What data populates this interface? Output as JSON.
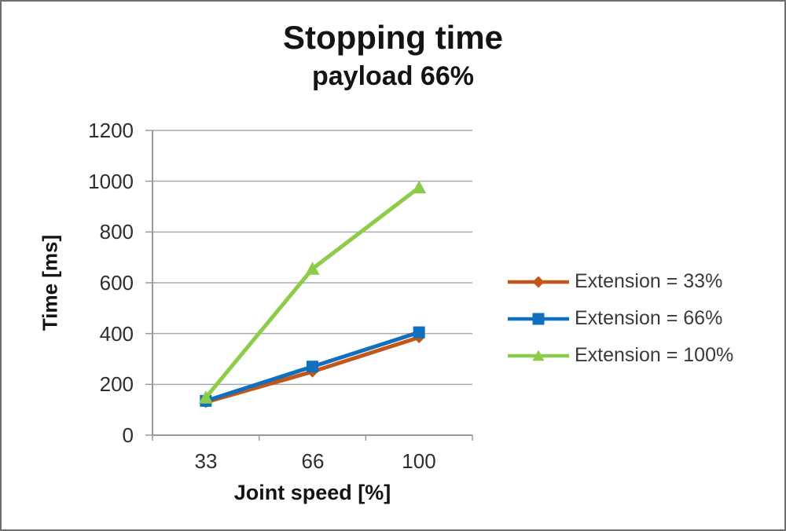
{
  "title": "Stopping time",
  "subtitle": "payload 66%",
  "chart_data": {
    "type": "line",
    "title": "Stopping time",
    "subtitle": "payload 66%",
    "xlabel": "Joint speed [%]",
    "ylabel": "Time [ms]",
    "categories": [
      "33",
      "66",
      "100"
    ],
    "ylim": [
      0,
      1200
    ],
    "ytick_values": [
      1200,
      1000,
      800,
      600,
      400,
      200,
      0
    ],
    "ytick_labels": [
      "1200",
      "1000",
      "800",
      "600",
      "400",
      "200",
      "0"
    ],
    "grid": true,
    "legend_position": "right",
    "series": [
      {
        "name": "Extension = 33%",
        "marker": "diamond",
        "color": "#c45717",
        "values": [
          130,
          250,
          385
        ]
      },
      {
        "name": "Extension = 66%",
        "marker": "square",
        "color": "#1070be",
        "values": [
          135,
          270,
          405
        ]
      },
      {
        "name": "Extension = 100%",
        "marker": "triangle",
        "color": "#8ccc49",
        "values": [
          148,
          655,
          975
        ]
      }
    ],
    "colors": {
      "grid": "#ababab",
      "axis": "#9a9a9a"
    }
  }
}
